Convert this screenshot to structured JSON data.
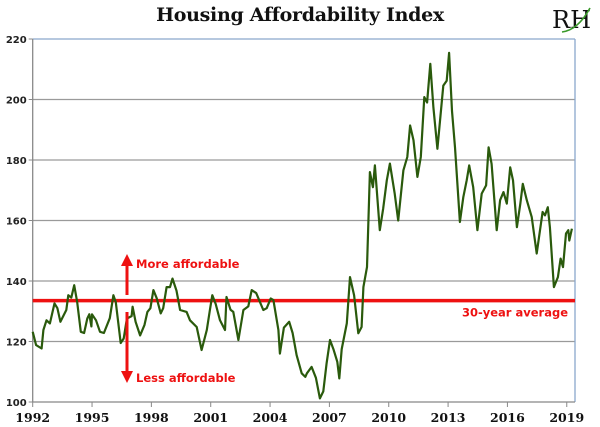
{
  "chart_data": {
    "type": "line",
    "title": "Housing Affordability Index",
    "logo_text": "RH",
    "xlabel": "",
    "ylabel": "",
    "xlim": [
      1992,
      2019.3
    ],
    "ylim": [
      100,
      220
    ],
    "x_ticks": [
      1992,
      1995,
      1998,
      2001,
      2004,
      2007,
      2010,
      2013,
      2016,
      2019
    ],
    "x_tick_labels": [
      "1992",
      "1995",
      "1998",
      "2001",
      "2004",
      "2007",
      "2010",
      "2013",
      "2016",
      "2019"
    ],
    "y_ticks": [
      100,
      120,
      140,
      160,
      180,
      200,
      220
    ],
    "y_tick_labels": [
      "100",
      "120",
      "140",
      "160",
      "180",
      "200",
      "220"
    ],
    "grid": true,
    "legend": "none",
    "colors": {
      "series": "#2a5a0c",
      "reference": "#ee1111",
      "annotation": "#ee1111",
      "grid": "#9a9a9a",
      "frame": "#8aa8cc"
    },
    "reference_line": {
      "name": "30-year average",
      "value": 133.5,
      "label": "30-year average"
    },
    "annotations": {
      "up": "More affordable",
      "down": "Less affordable"
    },
    "series": [
      {
        "name": "Housing Affordability Index",
        "points": [
          [
            1992.0,
            123.2
          ],
          [
            1992.17,
            118.8
          ],
          [
            1992.45,
            117.7
          ],
          [
            1992.54,
            123.8
          ],
          [
            1992.7,
            127
          ],
          [
            1992.87,
            126
          ],
          [
            1993.1,
            132.6
          ],
          [
            1993.25,
            131
          ],
          [
            1993.4,
            126.5
          ],
          [
            1993.7,
            130.4
          ],
          [
            1993.8,
            135.3
          ],
          [
            1993.95,
            134.5
          ],
          [
            1994.1,
            138.6
          ],
          [
            1994.25,
            133
          ],
          [
            1994.43,
            123.2
          ],
          [
            1994.6,
            122.8
          ],
          [
            1994.76,
            127.6
          ],
          [
            1994.86,
            129
          ],
          [
            1994.97,
            125
          ],
          [
            1995.0,
            129
          ],
          [
            1995.2,
            127
          ],
          [
            1995.4,
            123.2
          ],
          [
            1995.6,
            122.8
          ],
          [
            1995.9,
            127.7
          ],
          [
            1996.08,
            135.3
          ],
          [
            1996.2,
            133
          ],
          [
            1996.45,
            119.5
          ],
          [
            1996.6,
            121
          ],
          [
            1996.76,
            127.6
          ],
          [
            1997.0,
            128.4
          ],
          [
            1997.05,
            131.5
          ],
          [
            1997.2,
            126.5
          ],
          [
            1997.43,
            122
          ],
          [
            1997.65,
            125.5
          ],
          [
            1997.8,
            129.8
          ],
          [
            1997.95,
            131
          ],
          [
            1998.1,
            137
          ],
          [
            1998.27,
            134.3
          ],
          [
            1998.47,
            129.3
          ],
          [
            1998.6,
            131
          ],
          [
            1998.77,
            138
          ],
          [
            1998.94,
            138
          ],
          [
            1999.07,
            140.8
          ],
          [
            1999.27,
            136.8
          ],
          [
            1999.45,
            130.4
          ],
          [
            1999.78,
            129.8
          ],
          [
            1999.95,
            127
          ],
          [
            2000.29,
            124.8
          ],
          [
            2000.54,
            117.2
          ],
          [
            2000.8,
            123.8
          ],
          [
            2000.96,
            130.4
          ],
          [
            2001.08,
            135.3
          ],
          [
            2001.25,
            132.4
          ],
          [
            2001.47,
            127
          ],
          [
            2001.72,
            123.8
          ],
          [
            2001.8,
            134.7
          ],
          [
            2002.0,
            130.5
          ],
          [
            2002.14,
            129.8
          ],
          [
            2002.4,
            120.5
          ],
          [
            2002.65,
            130.4
          ],
          [
            2002.9,
            131.6
          ],
          [
            2003.07,
            137
          ],
          [
            2003.3,
            136
          ],
          [
            2003.66,
            130.4
          ],
          [
            2003.83,
            131
          ],
          [
            2004.03,
            134.2
          ],
          [
            2004.17,
            133.7
          ],
          [
            2004.42,
            123.8
          ],
          [
            2004.5,
            116
          ],
          [
            2004.7,
            124.6
          ],
          [
            2004.97,
            126.5
          ],
          [
            2005.14,
            122.8
          ],
          [
            2005.34,
            115.5
          ],
          [
            2005.6,
            109.5
          ],
          [
            2005.78,
            108.3
          ],
          [
            2005.86,
            109.5
          ],
          [
            2006.1,
            111.6
          ],
          [
            2006.32,
            108
          ],
          [
            2006.52,
            101.2
          ],
          [
            2006.69,
            103.5
          ],
          [
            2006.86,
            112.8
          ],
          [
            2007.03,
            120.5
          ],
          [
            2007.2,
            117.5
          ],
          [
            2007.4,
            113.3
          ],
          [
            2007.5,
            107.8
          ],
          [
            2007.62,
            117.5
          ],
          [
            2007.88,
            126
          ],
          [
            2008.04,
            141.3
          ],
          [
            2008.25,
            135.3
          ],
          [
            2008.46,
            122.7
          ],
          [
            2008.63,
            124.8
          ],
          [
            2008.72,
            138
          ],
          [
            2008.9,
            144.6
          ],
          [
            2009.05,
            176
          ],
          [
            2009.2,
            171
          ],
          [
            2009.3,
            178.2
          ],
          [
            2009.55,
            156.8
          ],
          [
            2009.72,
            164
          ],
          [
            2009.9,
            173.3
          ],
          [
            2010.06,
            178.8
          ],
          [
            2010.3,
            168.9
          ],
          [
            2010.48,
            160
          ],
          [
            2010.74,
            176.6
          ],
          [
            2010.94,
            181
          ],
          [
            2011.08,
            191.4
          ],
          [
            2011.25,
            186.5
          ],
          [
            2011.45,
            174.4
          ],
          [
            2011.62,
            181
          ],
          [
            2011.8,
            200.8
          ],
          [
            2011.94,
            199
          ],
          [
            2012.1,
            211.8
          ],
          [
            2012.26,
            197.4
          ],
          [
            2012.46,
            183.7
          ],
          [
            2012.76,
            204.6
          ],
          [
            2012.93,
            206.2
          ],
          [
            2013.05,
            215.4
          ],
          [
            2013.2,
            196.2
          ],
          [
            2013.35,
            184.2
          ],
          [
            2013.6,
            159.5
          ],
          [
            2013.77,
            167.7
          ],
          [
            2013.94,
            173.3
          ],
          [
            2014.07,
            178.2
          ],
          [
            2014.27,
            171
          ],
          [
            2014.48,
            156.8
          ],
          [
            2014.7,
            168.9
          ],
          [
            2014.92,
            171.6
          ],
          [
            2015.05,
            184.2
          ],
          [
            2015.2,
            178.7
          ],
          [
            2015.46,
            156.8
          ],
          [
            2015.63,
            166.7
          ],
          [
            2015.8,
            169.4
          ],
          [
            2015.97,
            165.6
          ],
          [
            2016.14,
            177.6
          ],
          [
            2016.28,
            173.3
          ],
          [
            2016.48,
            157.8
          ],
          [
            2016.65,
            165.5
          ],
          [
            2016.78,
            172.1
          ],
          [
            2016.98,
            166.7
          ],
          [
            2017.23,
            161.2
          ],
          [
            2017.48,
            149.1
          ],
          [
            2017.78,
            162.8
          ],
          [
            2017.9,
            161.7
          ],
          [
            2018.04,
            164.4
          ],
          [
            2018.15,
            157.8
          ],
          [
            2018.35,
            138
          ],
          [
            2018.55,
            141.3
          ],
          [
            2018.69,
            147.4
          ],
          [
            2018.81,
            144.6
          ],
          [
            2018.96,
            155.7
          ],
          [
            2019.08,
            156.8
          ],
          [
            2019.13,
            153.4
          ],
          [
            2019.26,
            157.3
          ]
        ]
      }
    ]
  }
}
